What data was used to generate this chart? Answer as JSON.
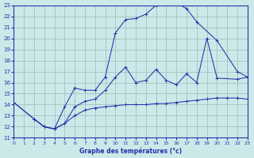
{
  "title": "Graphe des températures (°c)",
  "bg_color": "#cde8e8",
  "line_color": "#2233aa",
  "grid_color": "#99bbbb",
  "xlim": [
    0,
    23
  ],
  "ylim": [
    11,
    23
  ],
  "xticks": [
    0,
    1,
    2,
    3,
    4,
    5,
    6,
    7,
    8,
    9,
    10,
    11,
    12,
    13,
    14,
    15,
    16,
    17,
    18,
    19,
    20,
    21,
    22,
    23
  ],
  "yticks": [
    11,
    12,
    13,
    14,
    15,
    16,
    17,
    18,
    19,
    20,
    21,
    22,
    23
  ],
  "line1_x": [
    0,
    2,
    3,
    4,
    5,
    6,
    7,
    8,
    9,
    10,
    11,
    12,
    13,
    14,
    15,
    16,
    17,
    18,
    19,
    20,
    21,
    22,
    23
  ],
  "line1_y": [
    14.2,
    12.7,
    12.0,
    11.8,
    12.3,
    13.0,
    13.5,
    13.7,
    13.8,
    13.9,
    14.0,
    14.0,
    14.0,
    14.1,
    14.1,
    14.2,
    14.3,
    14.4,
    14.5,
    14.6,
    14.6,
    14.6,
    14.5
  ],
  "line2_x": [
    0,
    2,
    3,
    4,
    5,
    6,
    7,
    8,
    9,
    10,
    11,
    12,
    13,
    14,
    15,
    16,
    17,
    18,
    19,
    20,
    22,
    23
  ],
  "line2_y": [
    14.2,
    12.7,
    12.0,
    11.8,
    12.3,
    13.8,
    14.3,
    14.5,
    15.3,
    16.5,
    17.4,
    16.0,
    16.2,
    17.2,
    16.2,
    15.8,
    16.8,
    16.0,
    20.0,
    16.4,
    16.3,
    16.5
  ],
  "line3_x": [
    2,
    3,
    4,
    5,
    6,
    7,
    8,
    9,
    10,
    11,
    12,
    13,
    14,
    15,
    16,
    17,
    18,
    20,
    22,
    23
  ],
  "line3_y": [
    12.7,
    12.0,
    11.8,
    13.8,
    15.5,
    15.3,
    15.3,
    16.5,
    20.5,
    21.7,
    21.8,
    22.2,
    23.0,
    23.2,
    23.2,
    22.7,
    21.5,
    19.8,
    17.0,
    16.5
  ]
}
